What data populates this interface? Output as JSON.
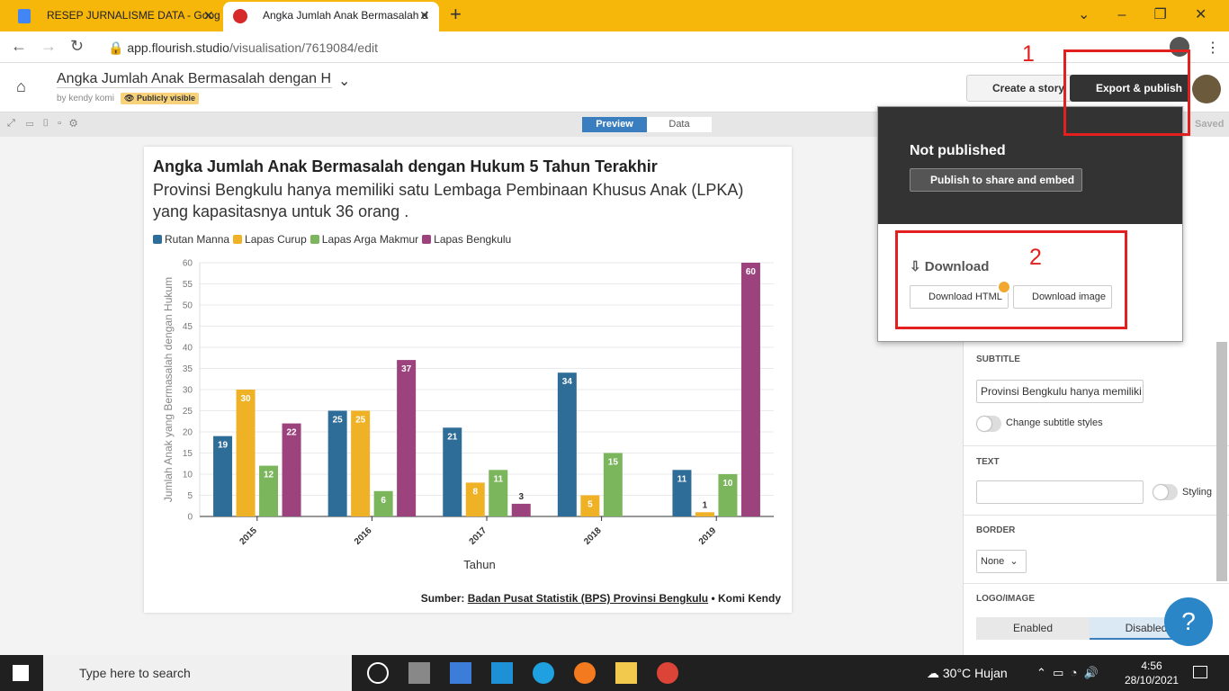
{
  "browser": {
    "tabs": [
      "RESEP JURNALISME DATA - Goog",
      "Angka Jumlah Anak Bermasalah d"
    ],
    "url_host": "app.flourish.studio",
    "url_path": "/visualisation/7619084/edit"
  },
  "header": {
    "title": "Angka Jumlah Anak Bermasalah dengan Huku",
    "author": "by kendy komi",
    "visibility": "Publicly visible",
    "buttons": [
      "Create a story",
      "Export & publish"
    ]
  },
  "annotations": [
    "1",
    "2"
  ],
  "toolbar": {
    "tabs": [
      "Preview",
      "Data"
    ],
    "status": "Saved"
  },
  "chart_data": {
    "type": "bar",
    "title": "Angka Jumlah Anak Bermasalah dengan Hukum 5 Tahun Terakhir",
    "subtitle": "Provinsi Bengkulu hanya memiliki satu Lembaga Pembinaan Khusus Anak (LPKA) yang kapasitasnya untuk 36 orang .",
    "categories": [
      "2015",
      "2016",
      "2017",
      "2018",
      "2019"
    ],
    "series": [
      {
        "name": "Rutan Manna",
        "color": "#2f6d99",
        "values": [
          19,
          25,
          21,
          34,
          11
        ]
      },
      {
        "name": "Lapas Curup",
        "color": "#efb125",
        "values": [
          30,
          25,
          8,
          5,
          1
        ]
      },
      {
        "name": "Lapas Arga Makmur",
        "color": "#7cb65c",
        "values": [
          12,
          6,
          11,
          15,
          10
        ]
      },
      {
        "name": "Lapas Bengkulu",
        "color": "#9c427d",
        "values": [
          22,
          37,
          3,
          null,
          60
        ]
      }
    ],
    "ylim": [
      0,
      60
    ],
    "yticks": [
      0,
      5,
      10,
      15,
      20,
      25,
      30,
      35,
      40,
      45,
      50,
      55,
      60
    ],
    "grid": true,
    "xlabel": "Tahun",
    "ylabel": "Jumlah Anak yang Bermasalah dengan Hukum",
    "source_prefix": "Sumber:",
    "source_link": "Badan Pusat Statistik (BPS) Provinsi Bengkulu",
    "source_suffix": "• Komi Kendy"
  },
  "export_menu": {
    "status": "Not published",
    "publish_button": "Publish to share and embed",
    "download_heading": "Download",
    "download_buttons": [
      "Download HTML",
      "Download image"
    ]
  },
  "settings_panel": {
    "subtitle_label": "SUBTITLE",
    "subtitle_value": "Provinsi Bengkulu hanya memiliki sat",
    "subtitle_toggle": "Change subtitle styles",
    "text_label": "TEXT",
    "text_toggle": "Styling",
    "border_label": "BORDER",
    "border_value": "None",
    "logo_label": "LOGO/IMAGE",
    "logo_options": [
      "Enabled",
      "Disabled"
    ]
  },
  "help": "?",
  "taskbar": {
    "search": "Type here to search",
    "temperature": "30°C",
    "weather": "Hujan",
    "time": "4:56",
    "date": "28/10/2021"
  }
}
